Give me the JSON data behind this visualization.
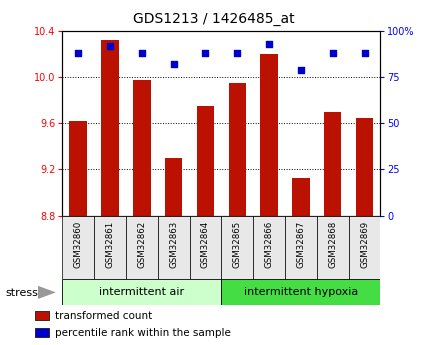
{
  "title": "GDS1213 / 1426485_at",
  "samples": [
    "GSM32860",
    "GSM32861",
    "GSM32862",
    "GSM32863",
    "GSM32864",
    "GSM32865",
    "GSM32866",
    "GSM32867",
    "GSM32868",
    "GSM32869"
  ],
  "transformed_count": [
    9.62,
    10.32,
    9.98,
    9.3,
    9.75,
    9.95,
    10.2,
    9.13,
    9.7,
    9.65
  ],
  "percentile_rank": [
    88,
    92,
    88,
    82,
    88,
    88,
    93,
    79,
    88,
    88
  ],
  "bar_color": "#bb1100",
  "dot_color": "#0000cc",
  "ylim_left": [
    8.8,
    10.4
  ],
  "ylim_right": [
    0,
    100
  ],
  "yticks_left": [
    8.8,
    9.2,
    9.6,
    10.0,
    10.4
  ],
  "yticks_right": [
    0,
    25,
    50,
    75,
    100
  ],
  "ytick_labels_right": [
    "0",
    "25",
    "50",
    "75",
    "100%"
  ],
  "groups": [
    {
      "label": "intermittent air",
      "start": 0,
      "end": 5,
      "color": "#ccffcc"
    },
    {
      "label": "intermittent hypoxia",
      "start": 5,
      "end": 10,
      "color": "#44dd44"
    }
  ],
  "stress_label": "stress",
  "legend_items": [
    {
      "color": "#bb1100",
      "label": "transformed count"
    },
    {
      "color": "#0000cc",
      "label": "percentile rank within the sample"
    }
  ],
  "grid_color": "black",
  "bg_color": "#e8e8e8",
  "bar_width": 0.55
}
